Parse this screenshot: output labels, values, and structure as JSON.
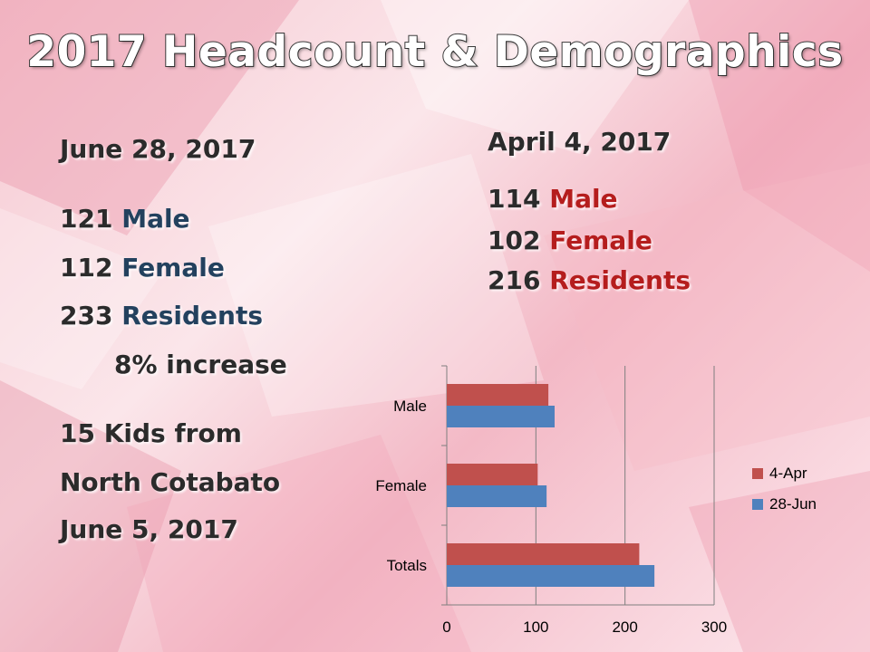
{
  "slide": {
    "title": "2017 Headcount & Demographics",
    "june": {
      "date": "June 28, 2017",
      "male_num": "121",
      "male_label": "Male",
      "female_num": "112",
      "female_label": "Female",
      "residents_num": "233",
      "residents_label": "Residents",
      "increase": "8% increase"
    },
    "kids": {
      "line1": "15 Kids from",
      "line2": "North Cotabato",
      "line3": "June 5, 2017"
    },
    "april": {
      "date": "April 4, 2017",
      "male_num": "114",
      "male_label": "Male",
      "female_num": "102",
      "female_label": "Female",
      "residents_num": "216",
      "residents_label": "Residents"
    }
  },
  "colors": {
    "apr": "#c0504d",
    "jun": "#4f81bd",
    "grid": "#7f7f7f"
  },
  "chart_data": {
    "type": "bar",
    "orientation": "horizontal",
    "title": "",
    "categories": [
      "Male",
      "Female",
      "Totals"
    ],
    "series": [
      {
        "name": "4-Apr",
        "values": [
          114,
          102,
          216
        ]
      },
      {
        "name": "28-Jun",
        "values": [
          121,
          112,
          233
        ]
      }
    ],
    "xlim": [
      0,
      300
    ],
    "xticks": [
      0,
      100,
      200,
      300
    ],
    "grid": true,
    "legend_position": "right"
  }
}
